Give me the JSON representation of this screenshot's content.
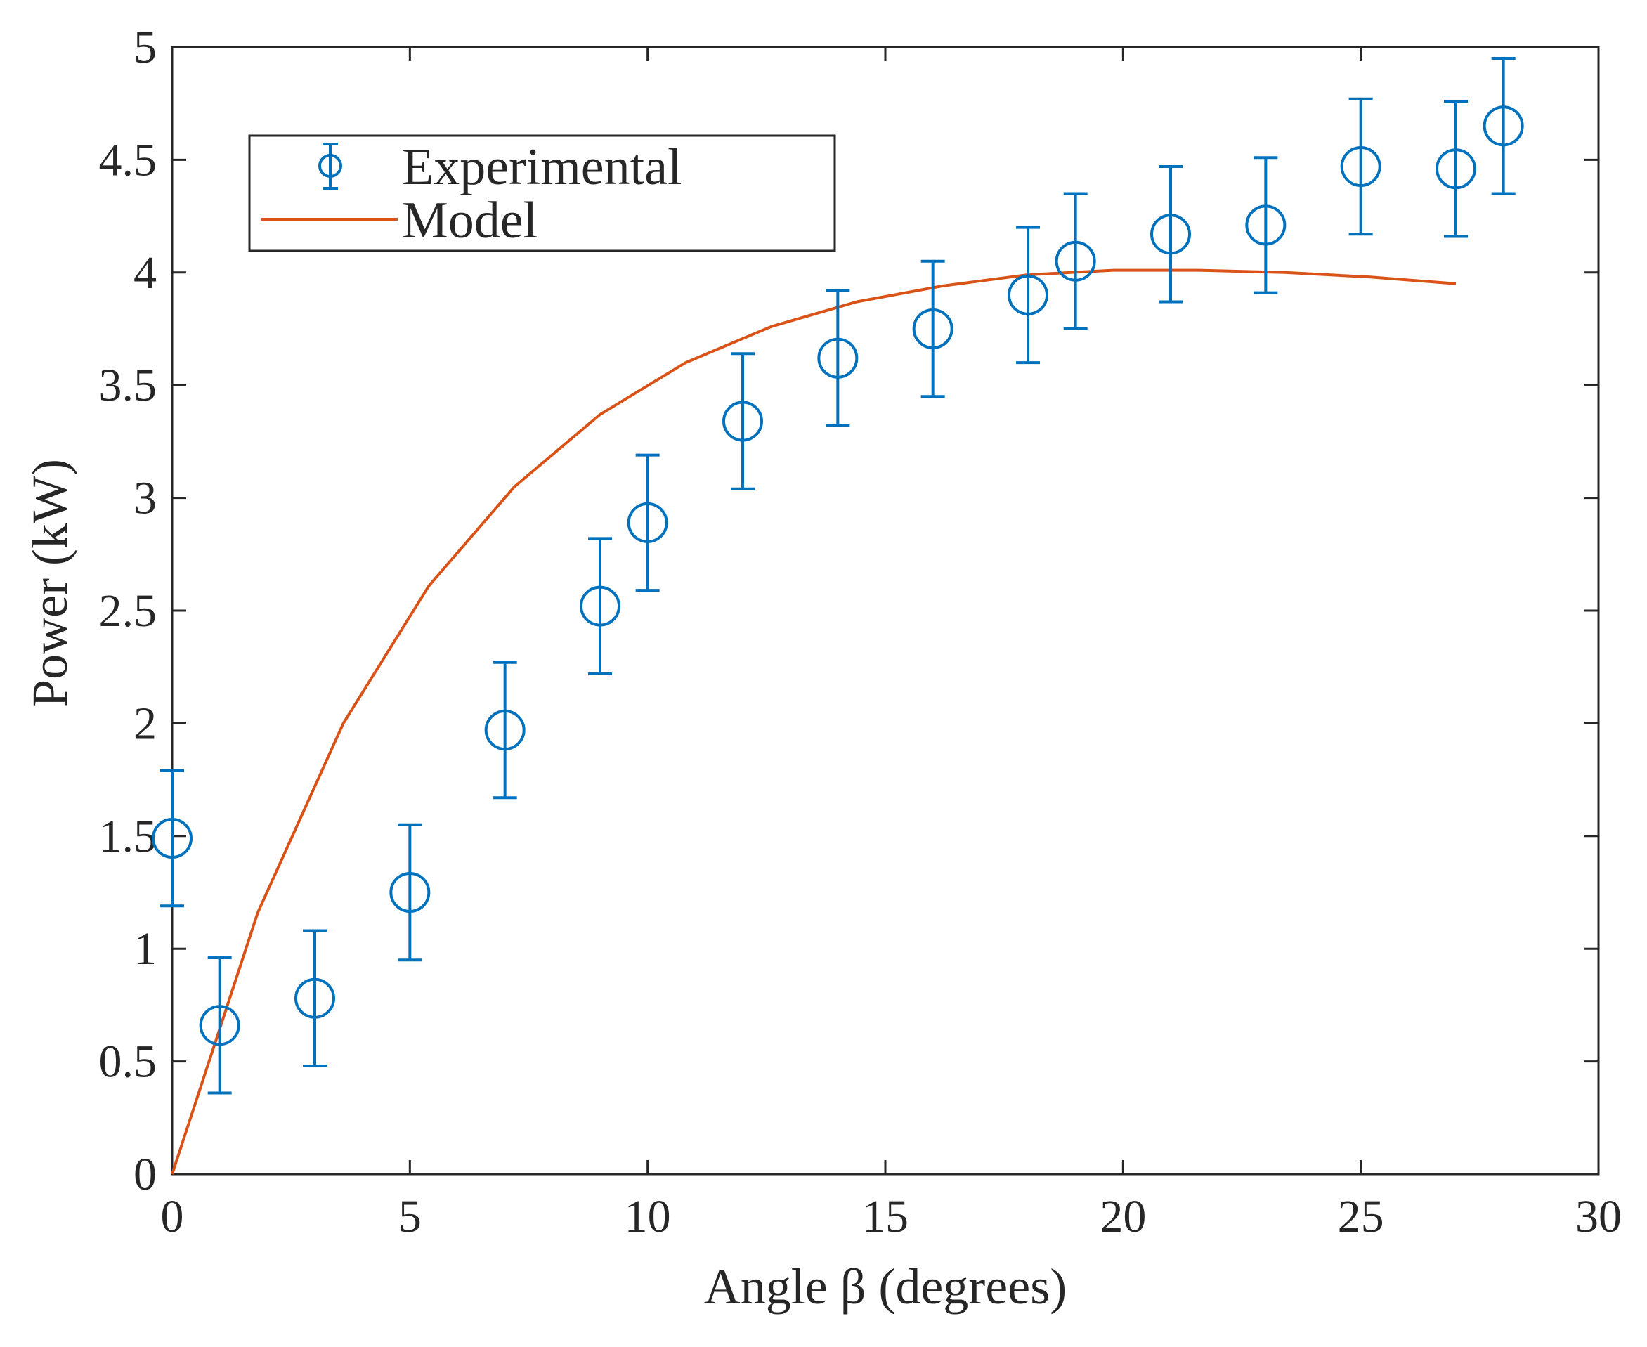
{
  "chart_data": {
    "type": "scatter",
    "title": "",
    "xlabel": "Angle β (degrees)",
    "ylabel": "Power (kW)",
    "xlim": [
      0,
      30
    ],
    "ylim": [
      0,
      5
    ],
    "xticks": [
      0,
      5,
      10,
      15,
      20,
      25,
      30
    ],
    "yticks": [
      0,
      0.5,
      1,
      1.5,
      2,
      2.5,
      3,
      3.5,
      4,
      4.5,
      5
    ],
    "x_tick_labels": [
      "0",
      "5",
      "10",
      "15",
      "20",
      "25",
      "30"
    ],
    "y_tick_labels": [
      "0",
      "0.5",
      "1",
      "1.5",
      "2",
      "2.5",
      "3",
      "3.5",
      "4",
      "4.5",
      "5"
    ],
    "grid": false,
    "legend_position": "top-left",
    "series": [
      {
        "name": "Experimental",
        "type": "errorbar",
        "color": "#0072BD",
        "x": [
          0,
          1,
          3,
          5,
          7,
          9,
          10,
          12,
          14,
          16,
          18,
          19,
          21,
          23,
          25,
          27,
          28
        ],
        "y": [
          1.49,
          0.66,
          0.78,
          1.25,
          1.97,
          2.52,
          2.89,
          3.34,
          3.62,
          3.75,
          3.9,
          4.05,
          4.17,
          4.21,
          4.47,
          4.46,
          4.65
        ],
        "error": 0.3
      },
      {
        "name": "Model",
        "type": "line",
        "color": "#D95319",
        "x": [
          0,
          1.8,
          3.6,
          5.4,
          7.2,
          9.0,
          10.8,
          12.6,
          14.4,
          16.2,
          18.0,
          19.8,
          21.6,
          23.4,
          25.2,
          27.0
        ],
        "y": [
          0,
          1.16,
          2.0,
          2.61,
          3.05,
          3.37,
          3.6,
          3.76,
          3.87,
          3.94,
          3.99,
          4.01,
          4.01,
          4.0,
          3.98,
          3.95
        ]
      }
    ]
  }
}
